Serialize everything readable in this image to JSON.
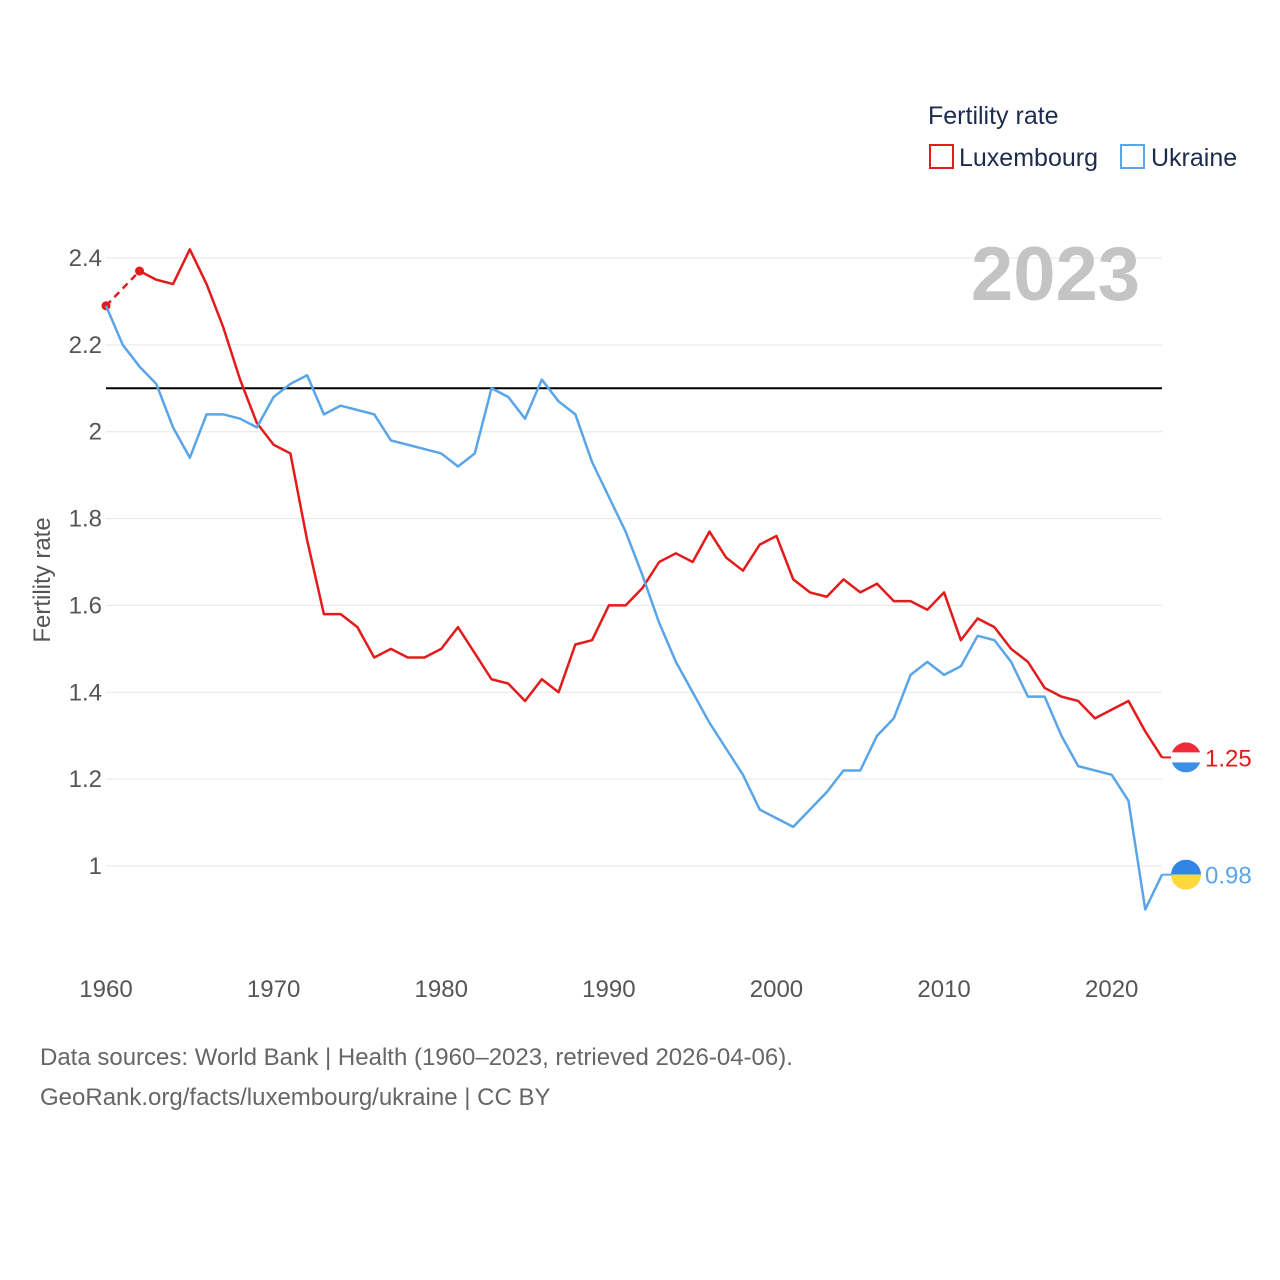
{
  "chart_data": {
    "type": "line",
    "title": "Fertility rate",
    "ylabel": "Fertility rate",
    "xlabel": "",
    "current_year": "2023",
    "xlim": [
      1960,
      2023
    ],
    "ylim": [
      0.85,
      2.45
    ],
    "xticks": [
      1960,
      1970,
      1980,
      1990,
      2000,
      2010,
      2020
    ],
    "yticks": [
      1,
      1.2,
      1.4,
      1.6,
      1.8,
      2,
      2.2,
      2.4
    ],
    "ytick_labels": [
      "1",
      "1.2",
      "1.4",
      "1.6",
      "1.8",
      "2",
      "2.2",
      "2.4"
    ],
    "reference_line": 2.1,
    "legend_position": "top-right",
    "series": [
      {
        "name": "Luxembourg",
        "color": "#e31b1b",
        "end_label": "1.25",
        "flag": "luxembourg-flag-icon",
        "estimated_points": [
          [
            1960,
            2.29
          ],
          [
            1962,
            2.37
          ]
        ],
        "points": [
          [
            1962,
            2.37
          ],
          [
            1963,
            2.35
          ],
          [
            1964,
            2.34
          ],
          [
            1965,
            2.42
          ],
          [
            1966,
            2.34
          ],
          [
            1967,
            2.24
          ],
          [
            1968,
            2.12
          ],
          [
            1969,
            2.02
          ],
          [
            1970,
            1.97
          ],
          [
            1971,
            1.95
          ],
          [
            1972,
            1.75
          ],
          [
            1973,
            1.58
          ],
          [
            1974,
            1.58
          ],
          [
            1975,
            1.55
          ],
          [
            1976,
            1.48
          ],
          [
            1977,
            1.5
          ],
          [
            1978,
            1.48
          ],
          [
            1979,
            1.48
          ],
          [
            1980,
            1.5
          ],
          [
            1981,
            1.55
          ],
          [
            1982,
            1.49
          ],
          [
            1983,
            1.43
          ],
          [
            1984,
            1.42
          ],
          [
            1985,
            1.38
          ],
          [
            1986,
            1.43
          ],
          [
            1987,
            1.4
          ],
          [
            1988,
            1.51
          ],
          [
            1989,
            1.52
          ],
          [
            1990,
            1.6
          ],
          [
            1991,
            1.6
          ],
          [
            1992,
            1.64
          ],
          [
            1993,
            1.7
          ],
          [
            1994,
            1.72
          ],
          [
            1995,
            1.7
          ],
          [
            1996,
            1.77
          ],
          [
            1997,
            1.71
          ],
          [
            1998,
            1.68
          ],
          [
            1999,
            1.74
          ],
          [
            2000,
            1.76
          ],
          [
            2001,
            1.66
          ],
          [
            2002,
            1.63
          ],
          [
            2003,
            1.62
          ],
          [
            2004,
            1.66
          ],
          [
            2005,
            1.63
          ],
          [
            2006,
            1.65
          ],
          [
            2007,
            1.61
          ],
          [
            2008,
            1.61
          ],
          [
            2009,
            1.59
          ],
          [
            2010,
            1.63
          ],
          [
            2011,
            1.52
          ],
          [
            2012,
            1.57
          ],
          [
            2013,
            1.55
          ],
          [
            2014,
            1.5
          ],
          [
            2015,
            1.47
          ],
          [
            2016,
            1.41
          ],
          [
            2017,
            1.39
          ],
          [
            2018,
            1.38
          ],
          [
            2019,
            1.34
          ],
          [
            2020,
            1.36
          ],
          [
            2021,
            1.38
          ],
          [
            2022,
            1.31
          ],
          [
            2023,
            1.25
          ]
        ]
      },
      {
        "name": "Ukraine",
        "color": "#5aa5e8",
        "end_label": "0.98",
        "flag": "ukraine-flag-icon",
        "estimated_points": [],
        "points": [
          [
            1960,
            2.29
          ],
          [
            1961,
            2.2
          ],
          [
            1962,
            2.15
          ],
          [
            1963,
            2.11
          ],
          [
            1964,
            2.01
          ],
          [
            1965,
            1.94
          ],
          [
            1966,
            2.04
          ],
          [
            1967,
            2.04
          ],
          [
            1968,
            2.03
          ],
          [
            1969,
            2.01
          ],
          [
            1970,
            2.08
          ],
          [
            1971,
            2.11
          ],
          [
            1972,
            2.13
          ],
          [
            1973,
            2.04
          ],
          [
            1974,
            2.06
          ],
          [
            1975,
            2.05
          ],
          [
            1976,
            2.04
          ],
          [
            1977,
            1.98
          ],
          [
            1978,
            1.97
          ],
          [
            1979,
            1.96
          ],
          [
            1980,
            1.95
          ],
          [
            1981,
            1.92
          ],
          [
            1982,
            1.95
          ],
          [
            1983,
            2.1
          ],
          [
            1984,
            2.08
          ],
          [
            1985,
            2.03
          ],
          [
            1986,
            2.12
          ],
          [
            1987,
            2.07
          ],
          [
            1988,
            2.04
          ],
          [
            1989,
            1.93
          ],
          [
            1990,
            1.85
          ],
          [
            1991,
            1.77
          ],
          [
            1992,
            1.67
          ],
          [
            1993,
            1.56
          ],
          [
            1994,
            1.47
          ],
          [
            1995,
            1.4
          ],
          [
            1996,
            1.33
          ],
          [
            1997,
            1.27
          ],
          [
            1998,
            1.21
          ],
          [
            1999,
            1.13
          ],
          [
            2000,
            1.11
          ],
          [
            2001,
            1.09
          ],
          [
            2002,
            1.13
          ],
          [
            2003,
            1.17
          ],
          [
            2004,
            1.22
          ],
          [
            2005,
            1.22
          ],
          [
            2006,
            1.3
          ],
          [
            2007,
            1.34
          ],
          [
            2008,
            1.44
          ],
          [
            2009,
            1.47
          ],
          [
            2010,
            1.44
          ],
          [
            2011,
            1.46
          ],
          [
            2012,
            1.53
          ],
          [
            2013,
            1.52
          ],
          [
            2014,
            1.47
          ],
          [
            2015,
            1.39
          ],
          [
            2016,
            1.39
          ],
          [
            2017,
            1.3
          ],
          [
            2018,
            1.23
          ],
          [
            2019,
            1.22
          ],
          [
            2020,
            1.21
          ],
          [
            2021,
            1.15
          ],
          [
            2022,
            0.9
          ],
          [
            2023,
            0.98
          ]
        ]
      }
    ]
  },
  "footer": {
    "source_line": "Data sources: World Bank | Health (1960–2023, retrieved 2026-04-06).",
    "credit_line": "GeoRank.org/facts/luxembourg/ukraine | CC BY"
  }
}
